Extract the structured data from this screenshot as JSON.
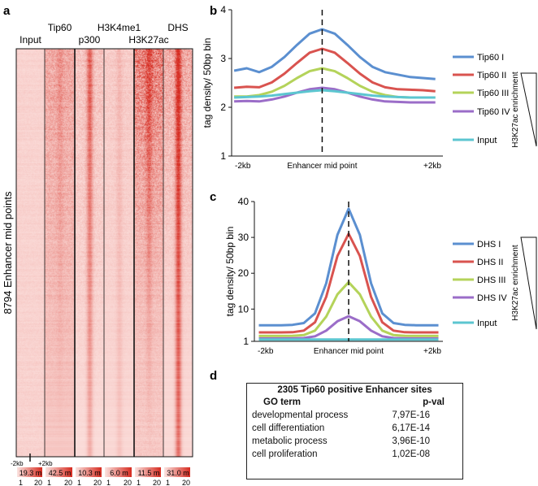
{
  "panel_labels": {
    "a": "a",
    "b": "b",
    "c": "c",
    "d": "d"
  },
  "heatmap": {
    "row_label": "8794 Enhancer mid points",
    "columns": [
      "Input",
      "Tip60",
      "p300",
      "H3K4me1",
      "H3K27ac",
      "DHS"
    ],
    "x_left": "-2kb",
    "x_right": "+2kb",
    "scale_max": [
      "19.3 m",
      "42.5 m",
      "10.3 m",
      "6.0 m",
      "11.5 m",
      "31.0 m"
    ],
    "scale_min_label": "1",
    "scale_max_label": "20",
    "color": "#d62b20"
  },
  "side_label": "H3K27ac enrichment",
  "chart_data": [
    {
      "type": "line",
      "panel": "b",
      "ylabel": "tag density/ 50bp bin",
      "xlabel": "Enhancer mid point",
      "x_tick_labels": [
        "-2kb",
        "+2kb"
      ],
      "yticks": [
        1,
        2,
        3,
        4
      ],
      "ylim": [
        1,
        4
      ],
      "xlim": [
        -1.8,
        2.4
      ],
      "x": [
        -1.75,
        -1.5,
        -1.25,
        -1,
        -0.75,
        -0.5,
        -0.25,
        0,
        0.25,
        0.5,
        0.75,
        1,
        1.25,
        1.5,
        1.75,
        2,
        2.25
      ],
      "series": [
        {
          "name": "Tip60 I",
          "color": "#5b8fd0",
          "values": [
            2.75,
            2.8,
            2.72,
            2.83,
            3.03,
            3.28,
            3.51,
            3.6,
            3.51,
            3.28,
            3.03,
            2.83,
            2.72,
            2.67,
            2.62,
            2.6,
            2.58
          ]
        },
        {
          "name": "Tip60 II",
          "color": "#d9534f",
          "values": [
            2.4,
            2.42,
            2.41,
            2.51,
            2.69,
            2.91,
            3.12,
            3.2,
            3.12,
            2.91,
            2.69,
            2.51,
            2.41,
            2.37,
            2.36,
            2.35,
            2.33
          ]
        },
        {
          "name": "Tip60 III",
          "color": "#b4d35a",
          "values": [
            2.22,
            2.22,
            2.25,
            2.32,
            2.44,
            2.6,
            2.74,
            2.8,
            2.74,
            2.6,
            2.44,
            2.32,
            2.25,
            2.21,
            2.2,
            2.2,
            2.2
          ]
        },
        {
          "name": "Tip60 IV",
          "color": "#9b6dc8",
          "values": [
            2.12,
            2.13,
            2.12,
            2.16,
            2.22,
            2.3,
            2.37,
            2.4,
            2.37,
            2.3,
            2.22,
            2.16,
            2.12,
            2.11,
            2.1,
            2.1,
            2.1
          ]
        },
        {
          "name": "Input",
          "color": "#5cc6d0",
          "values": [
            2.2,
            2.21,
            2.22,
            2.24,
            2.27,
            2.3,
            2.33,
            2.35,
            2.33,
            2.3,
            2.27,
            2.24,
            2.22,
            2.21,
            2.2,
            2.2,
            2.2
          ]
        }
      ]
    },
    {
      "type": "line",
      "panel": "c",
      "ylabel": "tag density/ 50bp bin",
      "xlabel": "Enhancer mid point",
      "x_tick_labels": [
        "-2kb",
        "+2kb"
      ],
      "yticks": [
        1,
        10,
        20,
        30,
        40
      ],
      "ylim": [
        1,
        40
      ],
      "xlim": [
        -2.1,
        2.1
      ],
      "x": [
        -2,
        -1.75,
        -1.5,
        -1.25,
        -1,
        -0.75,
        -0.5,
        -0.25,
        0,
        0.25,
        0.5,
        0.75,
        1,
        1.25,
        1.5,
        1.75,
        2
      ],
      "series": [
        {
          "name": "DHS I",
          "color": "#5b8fd0",
          "values": [
            5.5,
            5.5,
            5.5,
            5.6,
            6.1,
            8.8,
            17.2,
            30.7,
            38,
            30.7,
            17.2,
            8.8,
            6.1,
            5.6,
            5.5,
            5.5,
            5.5
          ]
        },
        {
          "name": "DHS II",
          "color": "#d9534f",
          "values": [
            3.5,
            3.5,
            3.5,
            3.55,
            4.0,
            6.3,
            13.4,
            24.8,
            31,
            24.8,
            13.4,
            6.3,
            4.0,
            3.55,
            3.5,
            3.5,
            3.5
          ]
        },
        {
          "name": "DHS III",
          "color": "#b4d35a",
          "values": [
            2.5,
            2.5,
            2.5,
            2.53,
            2.75,
            4.0,
            7.9,
            14.1,
            17.5,
            14.1,
            7.9,
            4.0,
            2.75,
            2.53,
            2.5,
            2.5,
            2.5
          ]
        },
        {
          "name": "DHS IV",
          "color": "#9b6dc8",
          "values": [
            1.8,
            1.8,
            1.8,
            1.81,
            1.9,
            2.4,
            4.0,
            6.6,
            8,
            6.6,
            4.0,
            2.4,
            1.9,
            1.81,
            1.8,
            1.8,
            1.8
          ]
        },
        {
          "name": "Input",
          "color": "#5cc6d0",
          "values": [
            1.5,
            1.5,
            1.5,
            1.5,
            1.5,
            1.5,
            1.5,
            1.5,
            1.5,
            1.5,
            1.5,
            1.5,
            1.5,
            1.5,
            1.5,
            1.5,
            1.5
          ]
        }
      ]
    }
  ],
  "go_table": {
    "title": "2305 Tip60 positive Enhancer sites",
    "headers": [
      "GO term",
      "p-val"
    ],
    "rows": [
      [
        "developmental process",
        "7,97E-16"
      ],
      [
        "cell differentiation",
        "6,17E-14"
      ],
      [
        "metabolic process",
        "3,96E-10"
      ],
      [
        "cell proliferation",
        "1,02E-08"
      ]
    ]
  }
}
